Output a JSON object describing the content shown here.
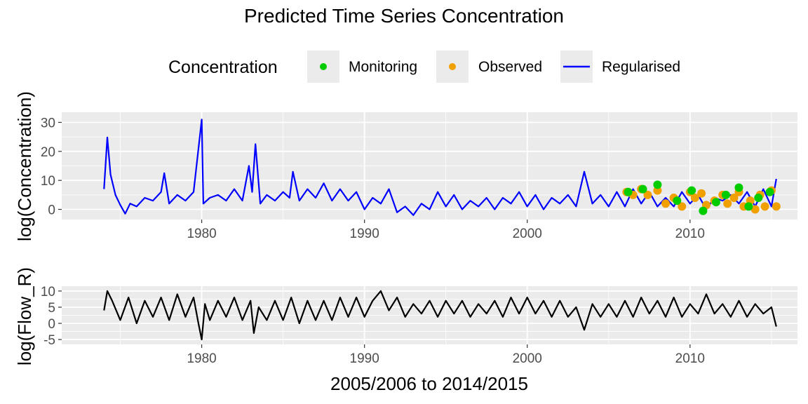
{
  "title": "Predicted Time Series Concentration",
  "legend": {
    "title": "Concentration",
    "items": [
      {
        "label": "Monitoring",
        "kind": "point",
        "color": "#00cc00"
      },
      {
        "label": "Observed",
        "kind": "point",
        "color": "#f0a000"
      },
      {
        "label": "Regularised",
        "kind": "line",
        "color": "#0000ff"
      }
    ]
  },
  "xlabel": "2005/2006  to  2014/2015",
  "colors": {
    "panel_bg": "#ebebeb",
    "grid": "#ffffff",
    "tick_text": "#4d4d4d",
    "flow_line": "#000000"
  },
  "chart_data": [
    {
      "type": "line",
      "ylabel": "log(Concentration)",
      "xlim": [
        1971.4,
        2016.6
      ],
      "ylim": [
        -3.5,
        33.5
      ],
      "x_ticks": [
        1980,
        1990,
        2000,
        2010
      ],
      "y_ticks": [
        0,
        10,
        20,
        30
      ],
      "grid": true,
      "series": [
        {
          "name": "Regularised",
          "color": "#0000ff",
          "x": [
            1974.0,
            1974.2,
            1974.4,
            1974.7,
            1975.0,
            1975.3,
            1975.6,
            1976.0,
            1976.5,
            1977.0,
            1977.5,
            1977.7,
            1978.0,
            1978.5,
            1979.0,
            1979.5,
            1979.9,
            1980.0,
            1980.1,
            1980.5,
            1981.0,
            1981.5,
            1982.0,
            1982.5,
            1982.9,
            1983.1,
            1983.3,
            1983.6,
            1984.0,
            1984.5,
            1985.0,
            1985.4,
            1985.6,
            1986.0,
            1986.5,
            1987.0,
            1987.5,
            1988.0,
            1988.5,
            1989.0,
            1989.5,
            1990.0,
            1990.5,
            1991.0,
            1991.5,
            1992.0,
            1992.5,
            1993.0,
            1993.5,
            1994.0,
            1994.5,
            1995.0,
            1995.5,
            1996.0,
            1996.5,
            1997.0,
            1997.5,
            1998.0,
            1998.5,
            1999.0,
            1999.5,
            2000.0,
            2000.5,
            2001.0,
            2001.5,
            2002.0,
            2002.5,
            2003.0,
            2003.5,
            2004.0,
            2004.5,
            2005.0,
            2005.5,
            2006.0,
            2006.5,
            2007.0,
            2007.5,
            2008.0,
            2008.5,
            2009.0,
            2009.5,
            2010.0,
            2010.5,
            2011.0,
            2011.5,
            2012.0,
            2012.5,
            2013.0,
            2013.5,
            2014.0,
            2014.5,
            2015.0,
            2015.3
          ],
          "y": [
            7,
            24.8,
            12,
            5,
            1.5,
            -1.5,
            2,
            1,
            4,
            3,
            6,
            12.5,
            2,
            5,
            3,
            6,
            26,
            31,
            2,
            4,
            5,
            3,
            7,
            3,
            15,
            6,
            22.5,
            2,
            5,
            3,
            6,
            4,
            13,
            3,
            7,
            4,
            9,
            3,
            7,
            3,
            6,
            0,
            4,
            2,
            7,
            -1,
            1,
            -2,
            2,
            0,
            6,
            1,
            5,
            0,
            3,
            1,
            4,
            0,
            4,
            2,
            6,
            1,
            5,
            0,
            4,
            2,
            5,
            1,
            13,
            2,
            5,
            1,
            6,
            1,
            7,
            2,
            6,
            1,
            4,
            1,
            6,
            2,
            5,
            0,
            4,
            3,
            5,
            2,
            6,
            1,
            7,
            1,
            10.5
          ]
        },
        {
          "name": "Observed",
          "color": "#f0a000",
          "x": [
            2006.1,
            2006.5,
            2007.0,
            2007.4,
            2008.0,
            2008.5,
            2009.0,
            2009.5,
            2010.0,
            2010.3,
            2010.7,
            2011.0,
            2011.5,
            2012.0,
            2012.3,
            2012.7,
            2013.0,
            2013.3,
            2013.7,
            2014.0,
            2014.3,
            2014.6,
            2015.0,
            2015.3
          ],
          "y": [
            6,
            5,
            7,
            5,
            6.5,
            2,
            4,
            1,
            6,
            4,
            5.5,
            1.5,
            3,
            5,
            2,
            4,
            6,
            1,
            3,
            0,
            5,
            1,
            6.5,
            1
          ]
        },
        {
          "name": "Monitoring",
          "color": "#00cc00",
          "x": [
            2006.2,
            2007.1,
            2008.0,
            2009.2,
            2010.1,
            2010.8,
            2011.6,
            2012.2,
            2013.0,
            2013.6,
            2014.2,
            2014.9
          ],
          "y": [
            6,
            7,
            8.5,
            3,
            6.5,
            -0.5,
            2.5,
            5,
            7.5,
            1,
            4,
            6
          ]
        }
      ]
    },
    {
      "type": "line",
      "ylabel": "log(Flow_R)",
      "xlim": [
        1971.4,
        2016.6
      ],
      "ylim": [
        -6.5,
        11.5
      ],
      "x_ticks": [
        1980,
        1990,
        2000,
        2010
      ],
      "y_ticks": [
        -5,
        0,
        5,
        10
      ],
      "grid": true,
      "series": [
        {
          "name": "log(Flow_R)",
          "color": "#000000",
          "x": [
            1974.0,
            1974.2,
            1974.5,
            1975.0,
            1975.5,
            1976.0,
            1976.5,
            1977.0,
            1977.5,
            1978.0,
            1978.5,
            1979.0,
            1979.5,
            1979.8,
            1980.0,
            1980.2,
            1980.5,
            1981.0,
            1981.5,
            1982.0,
            1982.5,
            1983.0,
            1983.2,
            1983.5,
            1984.0,
            1984.5,
            1985.0,
            1985.5,
            1986.0,
            1986.5,
            1987.0,
            1987.5,
            1988.0,
            1988.5,
            1989.0,
            1989.5,
            1990.0,
            1990.5,
            1991.0,
            1991.5,
            1992.0,
            1992.5,
            1993.0,
            1993.5,
            1994.0,
            1994.5,
            1995.0,
            1995.5,
            1996.0,
            1996.5,
            1997.0,
            1997.5,
            1998.0,
            1998.5,
            1999.0,
            1999.5,
            2000.0,
            2000.5,
            2001.0,
            2001.5,
            2002.0,
            2002.5,
            2003.0,
            2003.5,
            2004.0,
            2004.5,
            2005.0,
            2005.5,
            2006.0,
            2006.5,
            2007.0,
            2007.5,
            2008.0,
            2008.5,
            2009.0,
            2009.5,
            2010.0,
            2010.5,
            2011.0,
            2011.5,
            2012.0,
            2012.5,
            2013.0,
            2013.5,
            2014.0,
            2014.5,
            2015.0,
            2015.3
          ],
          "y": [
            4,
            10,
            7,
            1,
            8,
            0,
            7,
            2,
            8,
            1,
            9,
            2,
            8,
            0,
            -5,
            6,
            1,
            7,
            2,
            8,
            1,
            7,
            -3,
            5,
            1,
            7,
            1,
            8,
            0,
            7,
            1,
            7,
            1,
            8,
            2,
            8,
            2,
            7,
            10,
            4,
            8,
            2,
            6,
            3,
            7,
            2,
            7,
            3,
            7,
            2,
            6,
            3,
            7,
            2,
            8,
            3,
            8,
            3,
            7,
            2,
            7,
            2,
            5,
            -2,
            6,
            2,
            6,
            2,
            7,
            2,
            8,
            3,
            7,
            2,
            8,
            2,
            6,
            3,
            9,
            3,
            6,
            2,
            7,
            2,
            6,
            3,
            5,
            -1
          ]
        }
      ]
    }
  ]
}
